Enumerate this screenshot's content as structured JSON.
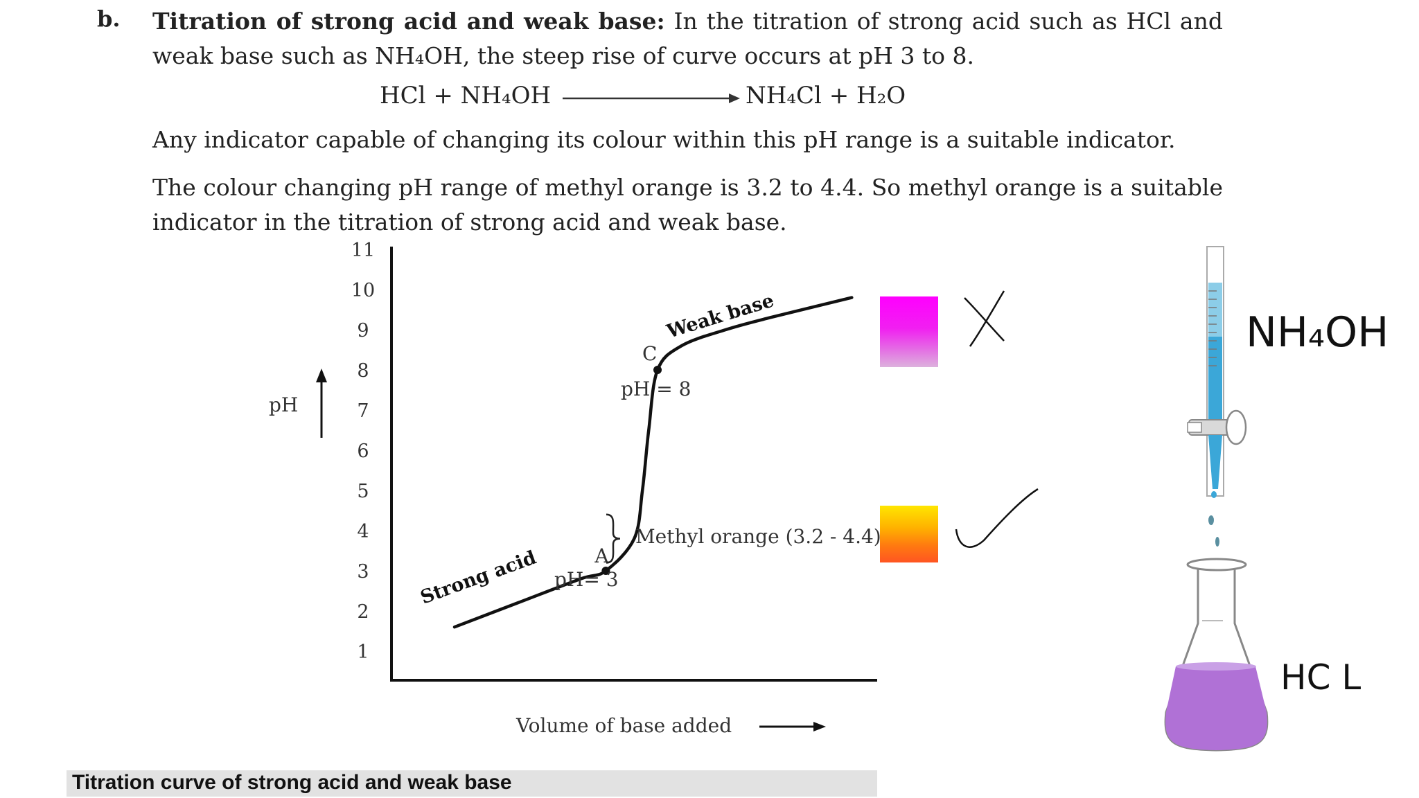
{
  "section": {
    "letter": "b.",
    "heading": "Titration of strong acid and weak base:",
    "paragraph1_rest": "In the titration of strong acid such as HCl and weak base such as NH₄OH, the steep rise of curve occurs at pH 3 to 8.",
    "equation": {
      "left": "HCl + NH₄OH",
      "right": "NH₄Cl + H₂O"
    },
    "paragraph2": "Any indicator capable of changing its colour within this pH range is a suitable indicator.",
    "paragraph3": "The colour changing pH range of methyl orange is 3.2 to 4.4. So methyl orange is a suitable indicator in the titration of strong acid and weak base."
  },
  "chart_data": {
    "type": "line",
    "title": "",
    "xlabel": "Volume of base added",
    "ylabel": "pH",
    "ylim": [
      0,
      11
    ],
    "yticks": [
      "1",
      "2",
      "3",
      "4",
      "5",
      "6",
      "7",
      "8",
      "9",
      "10",
      "11"
    ],
    "grid": false,
    "legend": "none",
    "series": [
      {
        "x": [
          1.0,
          2.0,
          3.0,
          3.4,
          3.85,
          3.98,
          4.08,
          4.22,
          4.6,
          5.3,
          6.0,
          7.3
        ],
        "y": [
          1.6,
          2.2,
          2.8,
          3.0,
          3.8,
          5.0,
          6.5,
          8.0,
          8.6,
          9.0,
          9.3,
          9.8
        ]
      }
    ],
    "points": [
      {
        "label": "A",
        "x": 3.4,
        "y": 3.0
      },
      {
        "label": "C",
        "x": 4.22,
        "y": 8.0
      }
    ],
    "annotations": {
      "strong_acid": "Strong acid",
      "weak_base": "Weak base",
      "ph_low": "pH= 3",
      "ph_high": "pH = 8",
      "indicator": "Methyl orange (3.2 - 4.4)",
      "indicator_range": [
        3.2,
        4.4
      ]
    },
    "caption": "Titration curve of strong acid and weak base"
  },
  "side_notes": {
    "burette_reagent": "NH₄OH",
    "flask_reagent": "HC L",
    "swatches": [
      {
        "name": "phenolphthalein-pink",
        "color": "#ff00ff",
        "mark": "cross"
      },
      {
        "name": "methyl-orange",
        "color": "#ff8a10",
        "mark": "tick"
      }
    ],
    "solution_color": "#b071d6",
    "liquid_color": "#3ba7d8"
  }
}
